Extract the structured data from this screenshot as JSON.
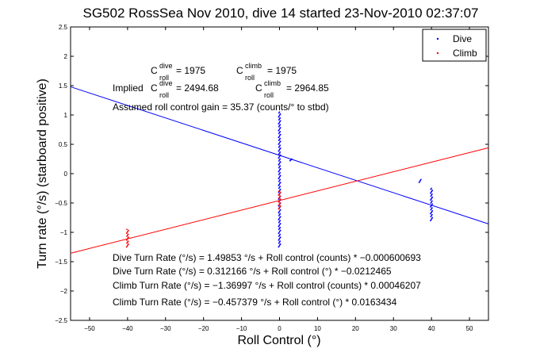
{
  "chart_data": {
    "type": "scatter",
    "title": "SG502 RossSea Nov 2010, dive 14 started 23-Nov-2010 02:37:07",
    "xlabel": "Roll Control (°)",
    "ylabel": "Turn rate (°/s) (starboard positive)",
    "xlim": [
      -55,
      55
    ],
    "ylim": [
      -2.5,
      2.5
    ],
    "xticks": [
      -50,
      -40,
      -30,
      -20,
      -10,
      0,
      10,
      20,
      30,
      40,
      50
    ],
    "yticks": [
      -2.5,
      -2,
      -1.5,
      -1,
      -0.5,
      0,
      0.5,
      1,
      1.5,
      2,
      2.5
    ],
    "xtick_labels": [
      "−50",
      "−40",
      "−30",
      "−20",
      "−10",
      "0",
      "10",
      "20",
      "30",
      "40",
      "50"
    ],
    "ytick_labels": [
      "−2.5",
      "−2",
      "−1.5",
      "−1",
      "−0.5",
      "0",
      "0.5",
      "1",
      "1.5",
      "2",
      "2.5"
    ],
    "grid": false,
    "legend_position": "top-right",
    "series": [
      {
        "name": "Dive",
        "color": "#0000ff",
        "clusters": [
          {
            "x": 0,
            "y_min": -1.25,
            "y_max": 1.05
          },
          {
            "x": 40,
            "y_min": -0.8,
            "y_max": -0.25
          },
          {
            "x": 37,
            "y_min": -0.15,
            "y_max": -0.1
          },
          {
            "x": 3,
            "y_min": 0.22,
            "y_max": 0.25
          }
        ],
        "fit": {
          "slope": -0.0212465,
          "intercept": 0.312166
        }
      },
      {
        "name": "Climb",
        "color": "#ff0000",
        "clusters": [
          {
            "x": -40,
            "y_min": -1.25,
            "y_max": -0.95
          },
          {
            "x": 0,
            "y_min": -0.6,
            "y_max": -0.3
          }
        ],
        "fit": {
          "slope": 0.0163434,
          "intercept": -0.457379
        }
      }
    ],
    "annotations": {
      "c_dive": {
        "base": "C",
        "sup": "dive",
        "sub": "roll",
        "value": " = 1975"
      },
      "c_climb": {
        "base": "C",
        "sup": "climb",
        "sub": "roll",
        "value": " = 1975"
      },
      "implied_prefix": "Implied ",
      "implied_dive": {
        "base": "C",
        "sup": "dive",
        "sub": "roll",
        "value": " = 2494.68"
      },
      "implied_climb": {
        "base": "C",
        "sup": "climb",
        "sub": "roll",
        "value": " = 2964.85"
      },
      "gain": "Assumed roll control gain = 35.37 (counts/° to stbd)",
      "eq1": "Dive Turn Rate (°/s) = 1.49853 °/s + Roll control (counts) * −0.000600693",
      "eq2": "Dive Turn Rate (°/s) = 0.312166 °/s + Roll control (°) * −0.0212465",
      "eq3": "Climb Turn Rate (°/s) = −1.36997 °/s + Roll control (counts) * 0.00046207",
      "eq4": "Climb Turn Rate (°/s) = −0.457379 °/s + Roll control (°) * 0.0163434"
    }
  }
}
